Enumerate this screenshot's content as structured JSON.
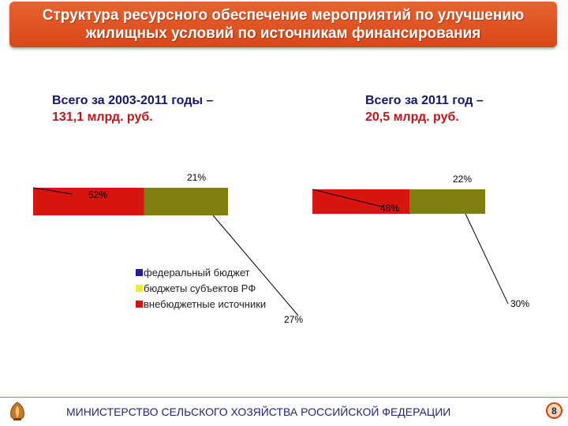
{
  "header": {
    "title": "Структура ресурсного обеспечение мероприятий по улучшению жилищных условий по источникам финансирования"
  },
  "totals": {
    "left": {
      "label": "Всего за 2003-2011 годы –",
      "value": "131,1 млрд. руб."
    },
    "right": {
      "label": "Всего за 2011 год –",
      "value": "20,5 млрд. руб."
    }
  },
  "chart_data": [
    {
      "type": "pie",
      "period": "2003-2011",
      "categories": [
        "федеральный бюджет",
        "бюджеты субъектов РФ",
        "внебюджетные источники"
      ],
      "values": [
        21,
        52,
        27
      ],
      "labels": [
        "21%",
        "52%",
        "27%"
      ]
    },
    {
      "type": "pie",
      "period": "2011",
      "categories": [
        "федеральный бюджет",
        "бюджеты субъектов РФ",
        "внебюджетные источники"
      ],
      "values": [
        22,
        48,
        30
      ],
      "labels": [
        "22%",
        "48%",
        "30%"
      ]
    }
  ],
  "legend": {
    "items": [
      {
        "label": "федеральный бюджет",
        "color": "#1f1f9e"
      },
      {
        "label": "бюджеты субъектов РФ",
        "color": "#7f7f0f"
      },
      {
        "label": "внебюджетные источники",
        "color": "#d7140f"
      }
    ]
  },
  "colors": {
    "federal_fill": "#7f7f0f",
    "other_fill": "#d7140f",
    "accent": "#e2572a"
  },
  "footer": {
    "ministry": "МИНИСТЕРСТВО СЕЛЬСКОГО ХОЗЯЙСТВА РОССИЙСКОЙ ФЕДЕРАЦИИ",
    "page_number": "8"
  }
}
